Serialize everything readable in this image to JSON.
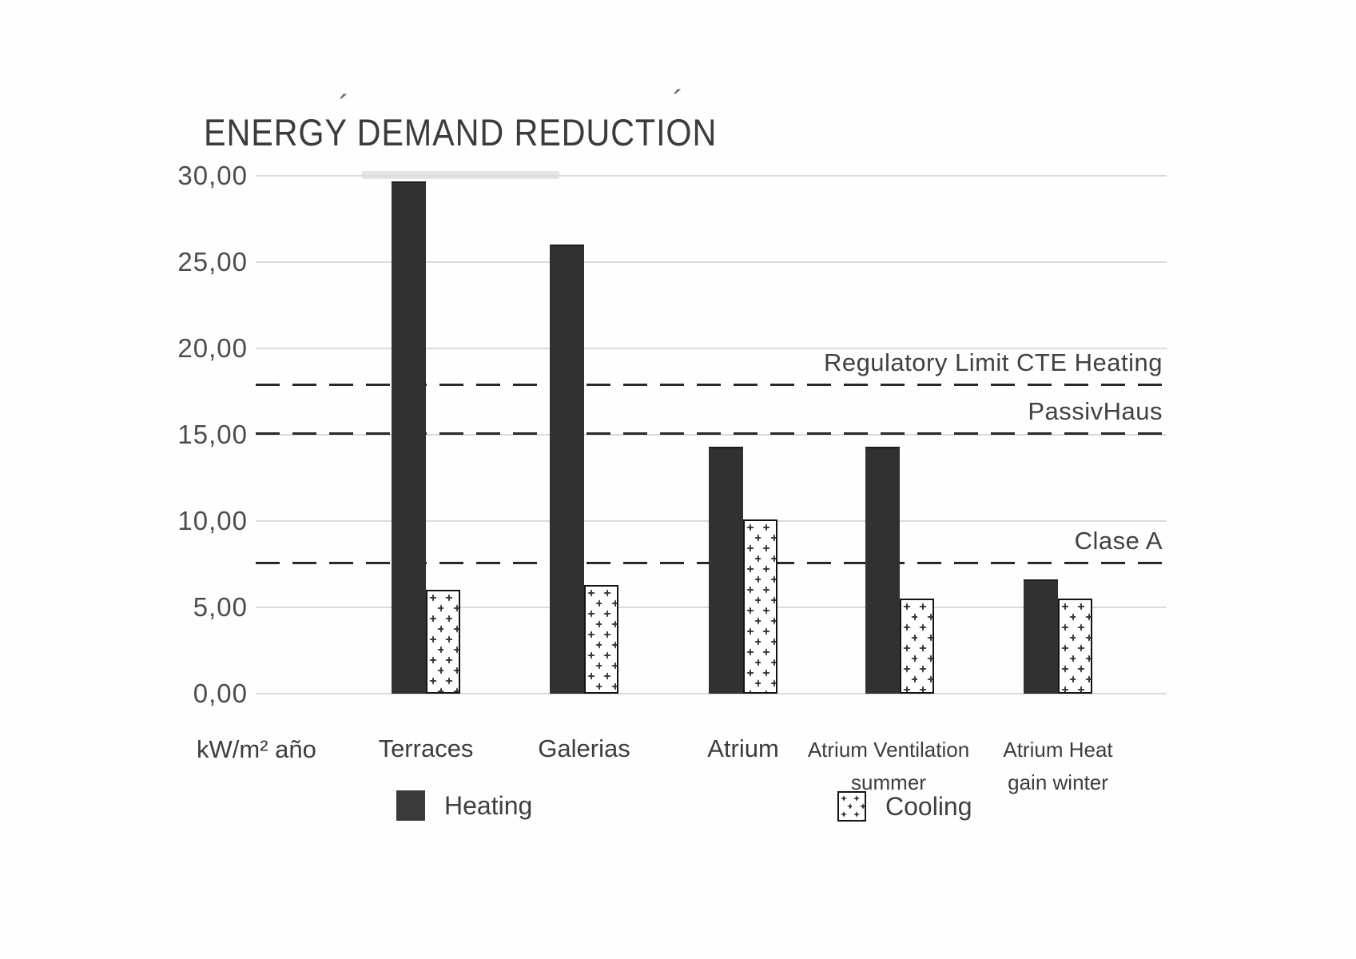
{
  "chart_data": {
    "type": "bar",
    "title": "ENERGY DEMAND REDUCTION",
    "unit_label": "kW/m² año",
    "categories": [
      "Terraces",
      "Galerias",
      "Atrium",
      "Atrium Ventilation summer",
      "Atrium Heat gain winter"
    ],
    "category_label_lines": [
      [
        "Terraces"
      ],
      [
        "Galerias"
      ],
      [
        "Atrium"
      ],
      [
        "Atrium Ventilation",
        "summer"
      ],
      [
        "Atrium Heat",
        "gain winter"
      ]
    ],
    "series": [
      {
        "name": "Heating",
        "style": "solid-dark",
        "color": "#313131",
        "values": [
          29.7,
          26.0,
          14.3,
          14.3,
          6.6
        ]
      },
      {
        "name": "Cooling",
        "style": "plus-hatch",
        "color": "#ffffff",
        "values": [
          6.0,
          6.3,
          10.1,
          5.5,
          5.5
        ]
      }
    ],
    "ylim": [
      0,
      30
    ],
    "ytick_labels": [
      "30,00",
      "25,00",
      "20,00",
      "15,00",
      "10,00",
      "5,00",
      "0,00"
    ],
    "grid": "horizontal",
    "legend": [
      "Heating",
      "Cooling"
    ],
    "legend_position": "bottom",
    "reference_lines": [
      {
        "label": "Regulatory Limit CTE Heating",
        "value": 17.9
      },
      {
        "label": "PassivHaus",
        "value": 15.1
      },
      {
        "label": "Clase A",
        "value": 7.6
      }
    ]
  },
  "artifacts": {
    "accent_over_demand": "´",
    "accent_after_reduction": "´"
  }
}
